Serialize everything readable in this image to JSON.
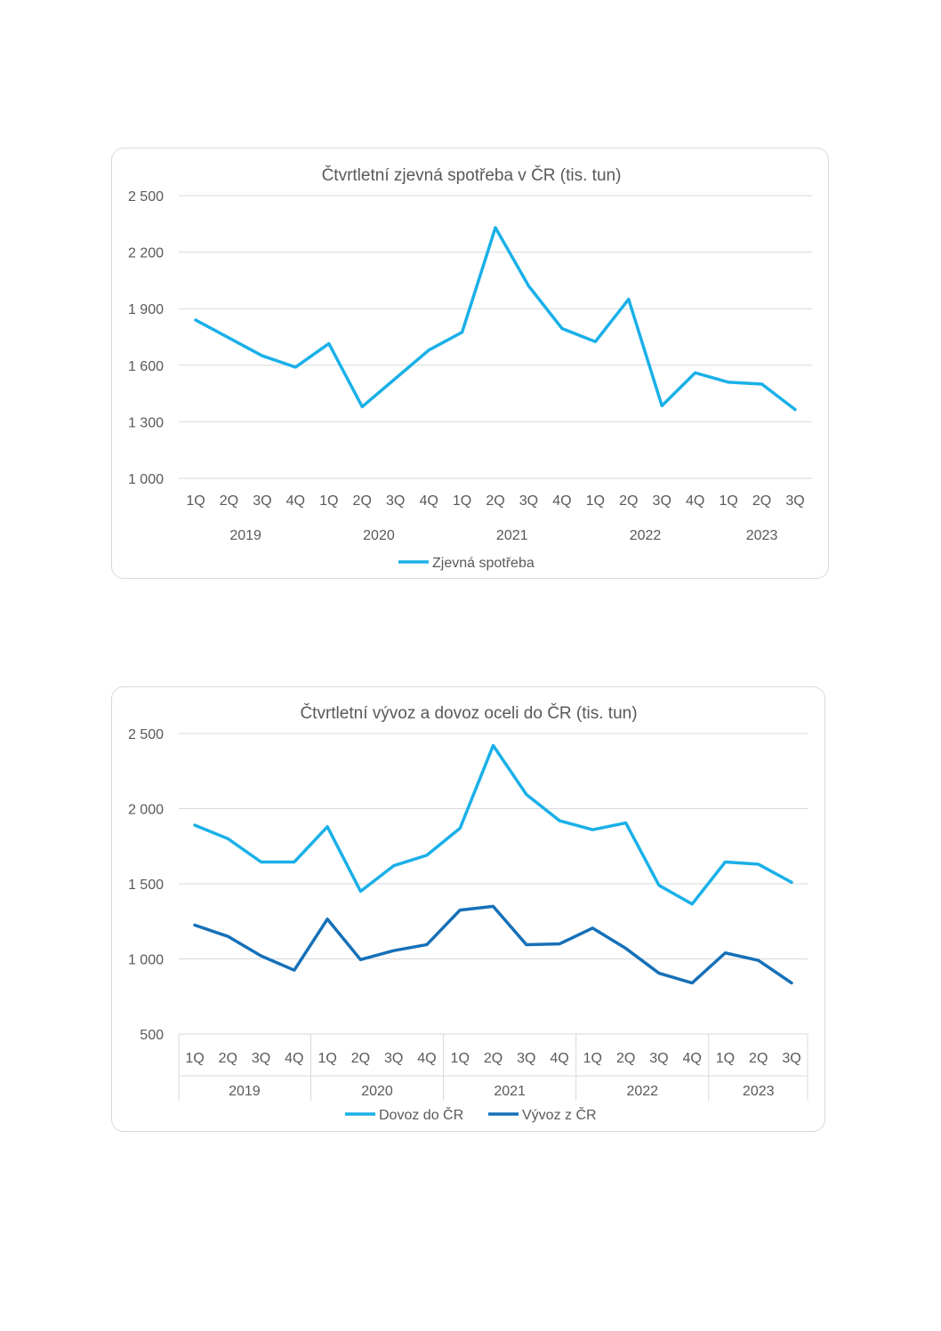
{
  "chart_data": [
    {
      "type": "line",
      "title": "Čtvrtletní zjevná spotřeba v ČR (tis. tun)",
      "xlabel": "",
      "ylabel": "",
      "quarter_labels": [
        "1Q",
        "2Q",
        "3Q",
        "4Q",
        "1Q",
        "2Q",
        "3Q",
        "4Q",
        "1Q",
        "2Q",
        "3Q",
        "4Q",
        "1Q",
        "2Q",
        "3Q",
        "4Q",
        "1Q",
        "2Q",
        "3Q"
      ],
      "year_labels": [
        "2019",
        "2020",
        "2021",
        "2022",
        "2023"
      ],
      "y_ticks": [
        "1 000",
        "1 300",
        "1 600",
        "1 900",
        "2 200",
        "2 500"
      ],
      "ylim": [
        1000,
        2500
      ],
      "grid": true,
      "legend_position": "bottom",
      "series": [
        {
          "name": "Zjevná spotřeba",
          "color": "#1ab0e8",
          "values": [
            1840,
            1745,
            1650,
            1590,
            1715,
            1380,
            1530,
            1680,
            1775,
            2330,
            2020,
            1795,
            1725,
            1950,
            1385,
            1560,
            1510,
            1500,
            1365
          ]
        }
      ]
    },
    {
      "type": "line",
      "title": "Čtvrtletní vývoz a dovoz oceli do ČR (tis. tun)",
      "xlabel": "",
      "ylabel": "",
      "quarter_labels": [
        "1Q",
        "2Q",
        "3Q",
        "4Q",
        "1Q",
        "2Q",
        "3Q",
        "4Q",
        "1Q",
        "2Q",
        "3Q",
        "4Q",
        "1Q",
        "2Q",
        "3Q",
        "4Q",
        "1Q",
        "2Q",
        "3Q"
      ],
      "year_labels": [
        "2019",
        "2020",
        "2021",
        "2022",
        "2023"
      ],
      "y_ticks": [
        "500",
        "1 000",
        "1 500",
        "2 000",
        "2 500"
      ],
      "ylim": [
        500,
        2500
      ],
      "grid": true,
      "legend_position": "bottom",
      "series": [
        {
          "name": "Dovoz do ČR",
          "color": "#1ab0e8",
          "values": [
            1890,
            1800,
            1645,
            1645,
            1880,
            1450,
            1620,
            1690,
            1870,
            2420,
            2095,
            1920,
            1860,
            1905,
            1490,
            1365,
            1645,
            1630,
            1510
          ]
        },
        {
          "name": "Vývoz z ČR",
          "color": "#1570b8",
          "values": [
            1225,
            1150,
            1020,
            925,
            1265,
            995,
            1055,
            1095,
            1325,
            1350,
            1095,
            1100,
            1205,
            1070,
            905,
            840,
            1040,
            990,
            840
          ]
        }
      ]
    }
  ]
}
